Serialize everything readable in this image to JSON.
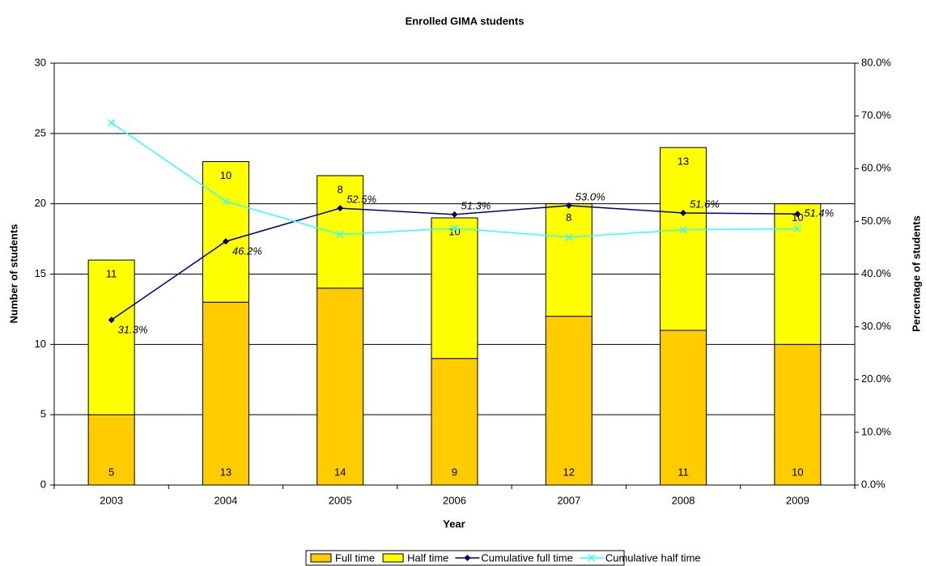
{
  "chart_data": {
    "type": "bar",
    "stacked": true,
    "title": "Enrolled GIMA students",
    "x_label": "Year",
    "y_label": "Number of students",
    "y2_label": "Percentage of students",
    "categories": [
      "2003",
      "2004",
      "2005",
      "2006",
      "2007",
      "2008",
      "2009"
    ],
    "series": [
      {
        "name": "Full time",
        "type": "bar",
        "color": "#ffcc00",
        "values": [
          5,
          13,
          14,
          9,
          12,
          11,
          10
        ]
      },
      {
        "name": "Half time",
        "type": "bar",
        "color": "#ffff00",
        "values": [
          11,
          10,
          8,
          10,
          8,
          13,
          10
        ]
      },
      {
        "name": "Cumulative full time",
        "type": "line",
        "axis": "y2",
        "marker": "diamond",
        "color": "#000080",
        "values": [
          31.3,
          46.2,
          52.5,
          51.3,
          53.0,
          51.6,
          51.4
        ],
        "value_labels": [
          "31.3%",
          "46.2%",
          "52.5%",
          "51.3%",
          "53.0%",
          "51.6%",
          "51.4%"
        ]
      },
      {
        "name": "Cumulative half time",
        "type": "line",
        "axis": "y2",
        "marker": "x",
        "color": "#33ffff",
        "values": [
          68.7,
          53.8,
          47.5,
          48.7,
          47.0,
          48.4,
          48.6
        ]
      }
    ],
    "ylim": [
      0,
      30
    ],
    "yticks": [
      0,
      5,
      10,
      15,
      20,
      25,
      30
    ],
    "y2lim": [
      0,
      80
    ],
    "y2ticks": [
      {
        "value": 0,
        "label": "0.0%"
      },
      {
        "value": 10,
        "label": "10.0%"
      },
      {
        "value": 20,
        "label": "20.0%"
      },
      {
        "value": 30,
        "label": "30.0%"
      },
      {
        "value": 40,
        "label": "40.0%"
      },
      {
        "value": 50,
        "label": "50.0%"
      },
      {
        "value": 60,
        "label": "60.0%"
      },
      {
        "value": 70,
        "label": "70.0%"
      },
      {
        "value": 80,
        "label": "80.0%"
      }
    ],
    "grid": true,
    "legend": "bottom"
  }
}
